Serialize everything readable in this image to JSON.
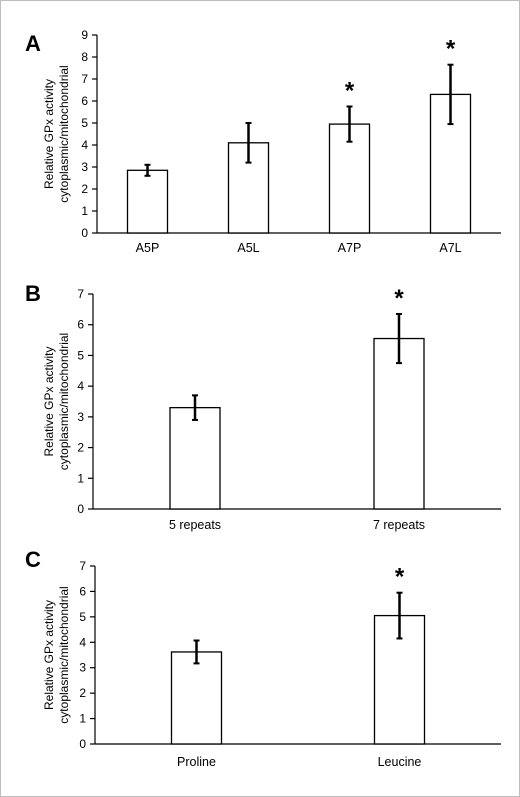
{
  "chart_data": [
    {
      "panel": "A",
      "type": "bar",
      "categories": [
        "A5P",
        "A5L",
        "A7P",
        "A7L"
      ],
      "values": [
        2.85,
        4.1,
        4.95,
        6.3
      ],
      "errors": [
        0.25,
        0.9,
        0.8,
        1.35
      ],
      "significant": [
        "",
        "",
        "*",
        "*"
      ],
      "ylabel_lines": [
        "Relative GPx activity",
        "cytoplasmic/mitochondrial"
      ],
      "xlabel": "",
      "ylim": [
        0,
        9
      ],
      "yticks": [
        0,
        1,
        2,
        3,
        4,
        5,
        6,
        7,
        8,
        9
      ],
      "grid": false,
      "bar_color": "#ffffff",
      "edge_color": "#000000"
    },
    {
      "panel": "B",
      "type": "bar",
      "categories": [
        "5 repeats",
        "7 repeats"
      ],
      "values": [
        3.3,
        5.55
      ],
      "errors": [
        0.4,
        0.8
      ],
      "significant": [
        "",
        "*"
      ],
      "ylabel_lines": [
        "Relative GPx activity",
        "cytoplasmic/mitochondrial"
      ],
      "xlabel": "",
      "ylim": [
        0,
        7
      ],
      "yticks": [
        0,
        1,
        2,
        3,
        4,
        5,
        6,
        7
      ],
      "grid": false,
      "bar_color": "#ffffff",
      "edge_color": "#000000"
    },
    {
      "panel": "C",
      "type": "bar",
      "categories": [
        "Proline",
        "Leucine"
      ],
      "values": [
        3.62,
        5.05
      ],
      "errors": [
        0.45,
        0.9
      ],
      "significant": [
        "",
        "*"
      ],
      "ylabel_lines": [
        "Relative GPx activity",
        "cytoplasmic/mitochondrial"
      ],
      "xlabel": "",
      "ylim": [
        0,
        7
      ],
      "yticks": [
        0,
        1,
        2,
        3,
        4,
        5,
        6,
        7
      ],
      "grid": false,
      "bar_color": "#ffffff",
      "edge_color": "#000000"
    }
  ]
}
